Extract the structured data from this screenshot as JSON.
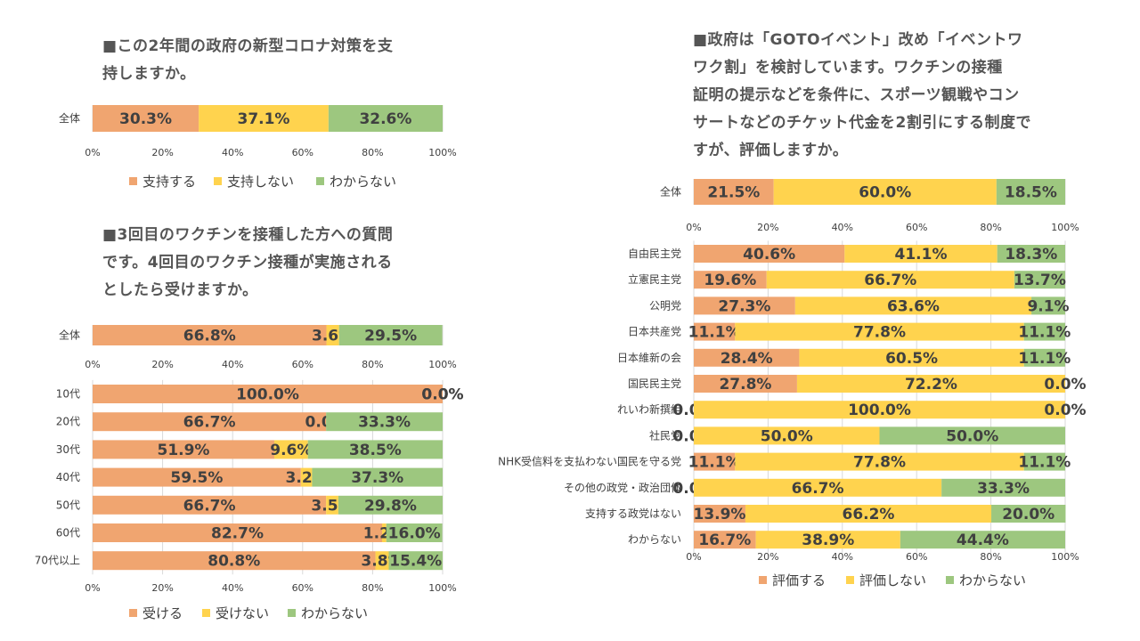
{
  "colors": {
    "orange": "#F0A570",
    "yellow": "#FFD34E",
    "green": "#9DC77F",
    "grid": "#d9d9d9"
  },
  "questions": {
    "q1": [
      "■この2年間の政府の新型コロナ対策を支",
      "持しますか。"
    ],
    "q2": [
      "■3回目のワクチンを接種した方への質問",
      "です。4回目のワクチン接種が実施される",
      "としたら受けますか。"
    ],
    "q3": [
      "■政府は「GOTOイベント」改め「イベントワ",
      "ワク割」を検討しています。ワクチンの接種",
      "証明の提示などを条件に、スポーツ観戦やコン",
      "サートなどのチケット代金を2割引にする制度で",
      "すが、評価しますか。"
    ]
  },
  "chart_data": [
    {
      "id": "support",
      "type": "bar",
      "orientation": "horizontal",
      "stacked": "percent",
      "title": "■この2年間の政府の新型コロナ対策を支持しますか。",
      "categories": [
        "全体"
      ],
      "series": [
        {
          "name": "支持する",
          "values": [
            30.3
          ]
        },
        {
          "name": "支持しない",
          "values": [
            37.1
          ]
        },
        {
          "name": "わからない",
          "values": [
            32.6
          ]
        }
      ],
      "xlim": [
        0,
        100
      ],
      "xticks": [
        "0%",
        "20%",
        "40%",
        "60%",
        "80%",
        "100%"
      ],
      "legend": "bottom"
    },
    {
      "id": "fourth_dose_total",
      "type": "bar",
      "orientation": "horizontal",
      "stacked": "percent",
      "title": "■3回目のワクチンを接種した方への質問です。4回目のワクチン接種が実施されるとしたら受けますか。",
      "categories": [
        "全体"
      ],
      "series": [
        {
          "name": "受ける",
          "values": [
            66.8
          ]
        },
        {
          "name": "受けない",
          "values": [
            3.6
          ]
        },
        {
          "name": "わからない",
          "values": [
            29.5
          ]
        }
      ],
      "xlim": [
        0,
        100
      ],
      "xticks": [
        "0%",
        "20%",
        "40%",
        "60%",
        "80%",
        "100%"
      ]
    },
    {
      "id": "fourth_dose_age",
      "type": "bar",
      "orientation": "horizontal",
      "stacked": "percent",
      "categories": [
        "10代",
        "20代",
        "30代",
        "40代",
        "50代",
        "60代",
        "70代以上"
      ],
      "series": [
        {
          "name": "受ける",
          "values": [
            100.0,
            66.7,
            51.9,
            59.5,
            66.7,
            82.7,
            80.8
          ]
        },
        {
          "name": "受けない",
          "values": [
            0.0,
            0.0,
            9.6,
            3.2,
            3.5,
            1.2,
            3.8
          ]
        },
        {
          "name": "わからない",
          "values": [
            0.0,
            33.3,
            38.5,
            37.3,
            29.8,
            16.0,
            15.4
          ]
        }
      ],
      "xlim": [
        0,
        100
      ],
      "xticks": [
        "0%",
        "20%",
        "40%",
        "60%",
        "80%",
        "100%"
      ],
      "legend": "bottom"
    },
    {
      "id": "gotoevent_total",
      "type": "bar",
      "orientation": "horizontal",
      "stacked": "percent",
      "title": "■政府は「GOTOイベント」改め「イベントワクワク割」を検討しています。ワクチンの接種証明の提示などを条件に、スポーツ観戦やコンサートなどのチケット代金を2割引にする制度ですが、評価しますか。",
      "categories": [
        "全体"
      ],
      "series": [
        {
          "name": "評価する",
          "values": [
            21.5
          ]
        },
        {
          "name": "評価しない",
          "values": [
            60.0
          ]
        },
        {
          "name": "わからない",
          "values": [
            18.5
          ]
        }
      ],
      "xlim": [
        0,
        100
      ],
      "xticks": [
        "0%",
        "20%",
        "40%",
        "60%",
        "80%",
        "100%"
      ]
    },
    {
      "id": "gotoevent_party",
      "type": "bar",
      "orientation": "horizontal",
      "stacked": "percent",
      "categories": [
        "自由民主党",
        "立憲民主党",
        "公明党",
        "日本共産党",
        "日本維新の会",
        "国民民主党",
        "れいわ新撰組",
        "社民党",
        "NHK受信料を支払わない国民を守る党",
        "その他の政党・政治団体",
        "支持する政党はない",
        "わからない"
      ],
      "series": [
        {
          "name": "評価する",
          "values": [
            40.6,
            19.6,
            27.3,
            11.1,
            28.4,
            27.8,
            0.0,
            0.0,
            11.1,
            0.0,
            13.9,
            16.7
          ]
        },
        {
          "name": "評価しない",
          "values": [
            41.1,
            66.7,
            63.6,
            77.8,
            60.5,
            72.2,
            100.0,
            50.0,
            77.8,
            66.7,
            66.2,
            38.9
          ]
        },
        {
          "name": "わからない",
          "values": [
            18.3,
            13.7,
            9.1,
            11.1,
            11.1,
            0.0,
            0.0,
            50.0,
            11.1,
            33.3,
            20.0,
            44.4
          ]
        }
      ],
      "xlim": [
        0,
        100
      ],
      "xticks": [
        "0%",
        "20%",
        "40%",
        "60%",
        "80%",
        "100%"
      ],
      "legend": "bottom"
    }
  ]
}
